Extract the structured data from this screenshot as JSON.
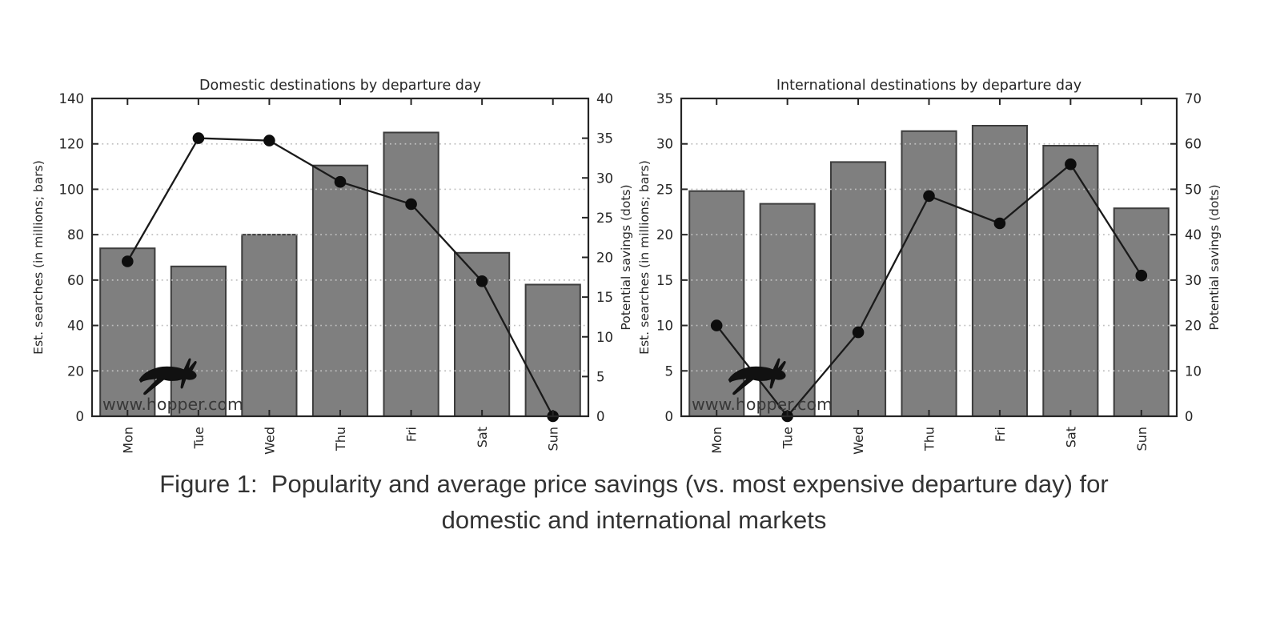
{
  "figure": {
    "caption_line1": "Figure 1:  Popularity and average price savings (vs. most expensive departure day) for",
    "caption_line2": "domestic and international markets"
  },
  "watermark": "www.hopper.com",
  "colors": {
    "bar_fill": "#7f7f7f",
    "bar_edge": "#3d3d3d",
    "line": "#1a1a1a",
    "dot": "#0d0d0d",
    "frame": "#262626",
    "grid": "#bfbfbf",
    "text": "#262626"
  },
  "chart_data": [
    {
      "type": "bar",
      "title": "Domestic destinations by departure day",
      "categories": [
        "Mon",
        "Tue",
        "Wed",
        "Thu",
        "Fri",
        "Sat",
        "Sun"
      ],
      "series": [
        {
          "name": "Est. searches (bars)",
          "axis": "left",
          "style": "bar",
          "values": [
            74,
            66,
            80,
            110.5,
            125,
            72,
            58
          ]
        },
        {
          "name": "Potential savings (dots)",
          "axis": "right",
          "style": "line-dots",
          "values": [
            19.5,
            35,
            34.7,
            29.5,
            26.7,
            17,
            0
          ]
        }
      ],
      "left_axis": {
        "label": "Est. searches (in millions; bars)",
        "min": 0,
        "max": 140,
        "ticks": [
          0,
          20,
          40,
          60,
          80,
          100,
          120,
          140
        ]
      },
      "right_axis": {
        "label": "Potential savings (dots)",
        "min": 0,
        "max": 40,
        "ticks": [
          0,
          5,
          10,
          15,
          20,
          25,
          30,
          35,
          40
        ]
      },
      "grid": "dotted horizontal lines at left-axis ticks, drawn above bars",
      "legend": "none"
    },
    {
      "type": "bar",
      "title": "International destinations by departure day",
      "categories": [
        "Mon",
        "Tue",
        "Wed",
        "Thu",
        "Fri",
        "Sat",
        "Sun"
      ],
      "series": [
        {
          "name": "Est. searches (bars)",
          "axis": "left",
          "style": "bar",
          "values": [
            24.8,
            23.4,
            28,
            31.4,
            32,
            29.8,
            22.9
          ]
        },
        {
          "name": "Potential savings (dots)",
          "axis": "right",
          "style": "line-dots",
          "values": [
            20,
            0,
            18.5,
            48.5,
            42.5,
            55.5,
            31
          ]
        }
      ],
      "left_axis": {
        "label": "Est. searches (in millions; bars)",
        "min": 0,
        "max": 35,
        "ticks": [
          0,
          5,
          10,
          15,
          20,
          25,
          30,
          35
        ]
      },
      "right_axis": {
        "label": "Potential savings (dots)",
        "min": 0,
        "max": 70,
        "ticks": [
          0,
          10,
          20,
          30,
          40,
          50,
          60,
          70
        ]
      },
      "grid": "dotted horizontal lines at left-axis ticks, drawn above bars",
      "legend": "none"
    }
  ]
}
